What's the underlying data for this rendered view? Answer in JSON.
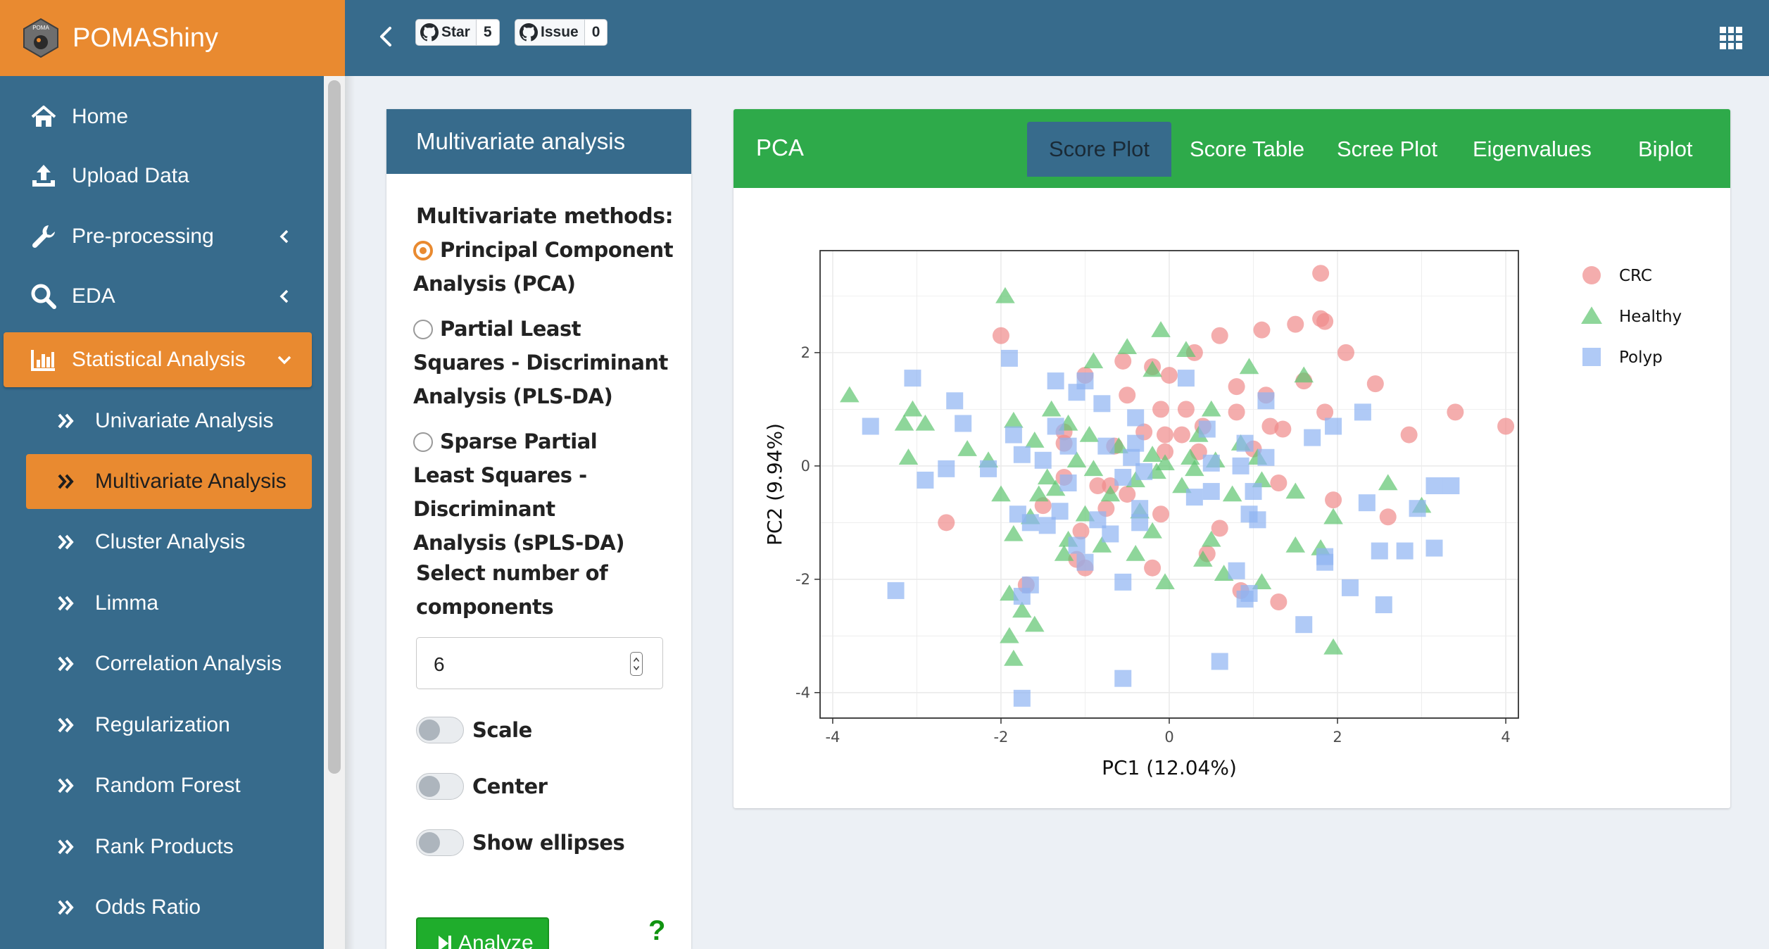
{
  "app": {
    "brand": "POMAShiny",
    "logo_text": "POMA"
  },
  "header": {
    "star_label": "Star",
    "star_count": "5",
    "issue_label": "Issue",
    "issue_count": "0"
  },
  "sidebar": {
    "items": [
      {
        "label": "Home",
        "icon": "home-icon"
      },
      {
        "label": "Upload Data",
        "icon": "upload-icon"
      },
      {
        "label": "Pre-processing",
        "icon": "wrench-icon"
      },
      {
        "label": "EDA",
        "icon": "search-icon"
      },
      {
        "label": "Statistical Analysis",
        "icon": "bar-chart-icon"
      }
    ],
    "sub_items": [
      "Univariate Analysis",
      "Multivariate Analysis",
      "Cluster Analysis",
      "Limma",
      "Correlation Analysis",
      "Regularization",
      "Random Forest",
      "Rank Products",
      "Odds Ratio"
    ]
  },
  "left_panel": {
    "title": "Multivariate analysis",
    "methods_label": "Multivariate methods:",
    "methods": [
      "Principal Component Analysis (PCA)",
      "Partial Least Squares - Discriminant Analysis (PLS-DA)",
      "Sparse Partial Least Squares - Discriminant Analysis (sPLS-DA)"
    ],
    "selected_method": "Principal Component Analysis (PCA)",
    "ncomp_label": "Select number of components",
    "ncomp_value": "6",
    "switches": [
      "Scale",
      "Center",
      "Show ellipses"
    ],
    "analyze_label": "Analyze",
    "help": "?"
  },
  "right_panel": {
    "title": "PCA",
    "tabs": [
      "Score Plot",
      "Score Table",
      "Scree Plot",
      "Eigenvalues",
      "Biplot"
    ],
    "active_tab": "Score Plot"
  },
  "colors": {
    "orange": "#e98a30",
    "blue": "#376b8c",
    "green": "#2eaa4a",
    "crc": "#f08a8a",
    "healthy": "#5ec46f",
    "polyp": "#8eb4f2"
  },
  "chart_data": {
    "type": "scatter",
    "xlabel": "PC1 (12.04%)",
    "ylabel": "PC2 (9.94%)",
    "xlim": [
      -4.15,
      4.15
    ],
    "ylim": [
      -4.45,
      3.8
    ],
    "xticks": [
      -4,
      -2,
      0,
      2,
      4
    ],
    "yticks": [
      -4,
      -2,
      0,
      2
    ],
    "grid": true,
    "legend_position": "right",
    "series": [
      {
        "name": "CRC",
        "marker": "circle",
        "color": "#f08a8a",
        "points": [
          [
            1.8,
            3.4
          ],
          [
            1.8,
            2.6
          ],
          [
            1.85,
            2.55
          ],
          [
            1.5,
            2.5
          ],
          [
            1.1,
            2.4
          ],
          [
            0.6,
            2.3
          ],
          [
            -2.0,
            2.3
          ],
          [
            2.1,
            2.0
          ],
          [
            0.3,
            2.0
          ],
          [
            -0.55,
            1.85
          ],
          [
            -0.2,
            1.75
          ],
          [
            0.0,
            1.6
          ],
          [
            -1.0,
            1.6
          ],
          [
            1.6,
            1.5
          ],
          [
            2.45,
            1.45
          ],
          [
            0.8,
            1.4
          ],
          [
            1.15,
            1.25
          ],
          [
            -0.5,
            1.25
          ],
          [
            -0.1,
            1.0
          ],
          [
            0.2,
            1.0
          ],
          [
            0.8,
            0.95
          ],
          [
            1.85,
            0.95
          ],
          [
            3.4,
            0.95
          ],
          [
            -0.3,
            0.6
          ],
          [
            -1.25,
            0.6
          ],
          [
            1.2,
            0.7
          ],
          [
            0.4,
            0.7
          ],
          [
            1.35,
            0.65
          ],
          [
            0.15,
            0.55
          ],
          [
            4.0,
            0.7
          ],
          [
            -0.05,
            0.55
          ],
          [
            2.85,
            0.55
          ],
          [
            -1.25,
            0.4
          ],
          [
            -0.65,
            0.35
          ],
          [
            -0.05,
            0.25
          ],
          [
            0.35,
            0.25
          ],
          [
            1.0,
            0.3
          ],
          [
            -1.25,
            -0.2
          ],
          [
            -0.7,
            -0.35
          ],
          [
            -0.85,
            -0.35
          ],
          [
            -0.5,
            -0.5
          ],
          [
            1.3,
            -0.3
          ],
          [
            -1.5,
            -0.7
          ],
          [
            -0.75,
            -0.75
          ],
          [
            -0.1,
            -0.85
          ],
          [
            1.95,
            -0.6
          ],
          [
            2.6,
            -0.9
          ],
          [
            -2.65,
            -1.0
          ],
          [
            0.6,
            -1.1
          ],
          [
            -1.05,
            -1.15
          ],
          [
            0.45,
            -1.55
          ],
          [
            -1.1,
            -1.65
          ],
          [
            -1.0,
            -1.8
          ],
          [
            -0.2,
            -1.8
          ],
          [
            -1.7,
            -2.1
          ],
          [
            0.85,
            -2.2
          ],
          [
            1.3,
            -2.4
          ]
        ]
      },
      {
        "name": "Healthy",
        "marker": "triangle",
        "color": "#5ec46f",
        "points": [
          [
            -1.95,
            3.0
          ],
          [
            -0.1,
            2.4
          ],
          [
            -0.5,
            2.1
          ],
          [
            0.2,
            2.05
          ],
          [
            -0.9,
            1.85
          ],
          [
            -0.2,
            1.7
          ],
          [
            0.95,
            1.75
          ],
          [
            1.6,
            1.6
          ],
          [
            -3.8,
            1.25
          ],
          [
            -3.05,
            1.0
          ],
          [
            -3.15,
            0.75
          ],
          [
            -2.9,
            0.75
          ],
          [
            -1.85,
            0.8
          ],
          [
            -1.4,
            1.0
          ],
          [
            0.5,
            1.0
          ],
          [
            -1.2,
            0.75
          ],
          [
            -0.95,
            0.55
          ],
          [
            0.35,
            0.55
          ],
          [
            -2.4,
            0.3
          ],
          [
            -1.6,
            0.45
          ],
          [
            -2.15,
            0.1
          ],
          [
            -3.1,
            0.15
          ],
          [
            -1.1,
            0.1
          ],
          [
            -0.6,
            0.35
          ],
          [
            0.85,
            0.4
          ],
          [
            -0.2,
            0.2
          ],
          [
            0.25,
            0.15
          ],
          [
            1.05,
            0.15
          ],
          [
            -0.9,
            -0.05
          ],
          [
            -0.15,
            -0.1
          ],
          [
            0.55,
            0.1
          ],
          [
            -0.05,
            0.05
          ],
          [
            0.3,
            -0.05
          ],
          [
            1.1,
            -0.25
          ],
          [
            -1.45,
            -0.2
          ],
          [
            -0.4,
            -0.25
          ],
          [
            -2.0,
            -0.5
          ],
          [
            -1.35,
            -0.4
          ],
          [
            -1.55,
            -0.5
          ],
          [
            -0.7,
            -0.5
          ],
          [
            0.15,
            -0.35
          ],
          [
            0.75,
            -0.5
          ],
          [
            1.5,
            -0.45
          ],
          [
            2.6,
            -0.3
          ],
          [
            3.0,
            -0.7
          ],
          [
            -1.65,
            -0.9
          ],
          [
            -1.0,
            -0.85
          ],
          [
            -0.35,
            -0.8
          ],
          [
            1.95,
            -0.9
          ],
          [
            -1.85,
            -1.2
          ],
          [
            -1.2,
            -1.3
          ],
          [
            -0.2,
            -1.15
          ],
          [
            0.5,
            -1.3
          ],
          [
            1.5,
            -1.4
          ],
          [
            1.8,
            -1.45
          ],
          [
            -1.25,
            -1.55
          ],
          [
            -0.8,
            -1.4
          ],
          [
            -0.4,
            -1.55
          ],
          [
            0.4,
            -1.65
          ],
          [
            0.65,
            -1.9
          ],
          [
            1.1,
            -2.05
          ],
          [
            -0.05,
            -2.05
          ],
          [
            -1.9,
            -2.25
          ],
          [
            -1.75,
            -2.55
          ],
          [
            -1.6,
            -2.8
          ],
          [
            -1.9,
            -3.0
          ],
          [
            -1.85,
            -3.4
          ],
          [
            1.95,
            -3.2
          ]
        ]
      },
      {
        "name": "Polyp",
        "marker": "square",
        "color": "#8eb4f2",
        "points": [
          [
            -1.9,
            1.9
          ],
          [
            -3.05,
            1.55
          ],
          [
            -2.55,
            1.15
          ],
          [
            -1.35,
            1.5
          ],
          [
            -1.0,
            1.5
          ],
          [
            -1.1,
            1.3
          ],
          [
            -0.8,
            1.1
          ],
          [
            0.2,
            1.55
          ],
          [
            1.15,
            1.15
          ],
          [
            2.3,
            0.95
          ],
          [
            -3.55,
            0.7
          ],
          [
            -2.45,
            0.75
          ],
          [
            -1.35,
            0.7
          ],
          [
            -0.4,
            0.85
          ],
          [
            0.45,
            0.65
          ],
          [
            1.95,
            0.7
          ],
          [
            -1.85,
            0.55
          ],
          [
            -1.2,
            0.35
          ],
          [
            -0.4,
            0.4
          ],
          [
            0.9,
            0.4
          ],
          [
            1.7,
            0.5
          ],
          [
            -1.75,
            0.2
          ],
          [
            -1.5,
            0.1
          ],
          [
            -0.75,
            0.35
          ],
          [
            -0.45,
            0.15
          ],
          [
            0.5,
            0.05
          ],
          [
            0.85,
            0.0
          ],
          [
            1.15,
            0.15
          ],
          [
            -0.3,
            -0.1
          ],
          [
            -2.15,
            -0.05
          ],
          [
            -2.65,
            -0.05
          ],
          [
            -2.9,
            -0.25
          ],
          [
            -1.2,
            -0.3
          ],
          [
            -0.55,
            -0.2
          ],
          [
            0.5,
            -0.45
          ],
          [
            0.3,
            -0.55
          ],
          [
            1.0,
            -0.45
          ],
          [
            -1.8,
            -0.85
          ],
          [
            -1.3,
            -0.8
          ],
          [
            -0.85,
            -0.95
          ],
          [
            -0.35,
            -0.75
          ],
          [
            0.95,
            -0.85
          ],
          [
            1.05,
            -0.95
          ],
          [
            3.15,
            -0.35
          ],
          [
            3.35,
            -0.35
          ],
          [
            2.35,
            -0.65
          ],
          [
            2.95,
            -0.75
          ],
          [
            -1.65,
            -1.0
          ],
          [
            -1.45,
            -1.05
          ],
          [
            -1.1,
            -1.4
          ],
          [
            -0.7,
            -1.2
          ],
          [
            -0.35,
            -1.0
          ],
          [
            -1.0,
            -1.7
          ],
          [
            1.85,
            -1.6
          ],
          [
            1.85,
            -1.7
          ],
          [
            2.5,
            -1.5
          ],
          [
            2.8,
            -1.5
          ],
          [
            3.15,
            -1.45
          ],
          [
            -1.65,
            -2.1
          ],
          [
            0.8,
            -1.85
          ],
          [
            -0.55,
            -2.05
          ],
          [
            -3.25,
            -2.2
          ],
          [
            -1.75,
            -2.3
          ],
          [
            0.95,
            -2.25
          ],
          [
            0.9,
            -2.35
          ],
          [
            2.15,
            -2.15
          ],
          [
            2.55,
            -2.45
          ],
          [
            1.6,
            -2.8
          ],
          [
            -0.55,
            -3.75
          ],
          [
            0.6,
            -3.45
          ],
          [
            -1.75,
            -4.1
          ]
        ]
      }
    ]
  }
}
